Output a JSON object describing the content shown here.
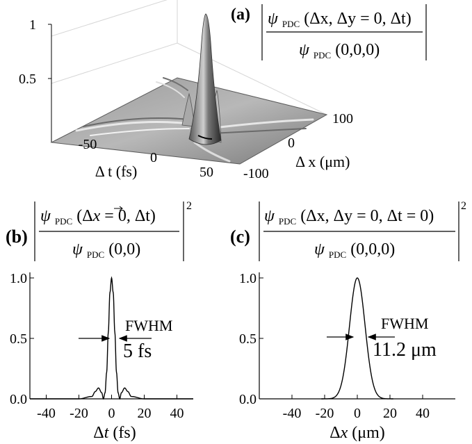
{
  "figure": {
    "a": {
      "tag": "(a)",
      "num_psi": "ψ",
      "num_sub": "PDC",
      "num_args": "(Δx, Δy = 0, Δt)",
      "den_psi": "ψ",
      "den_sub": "PDC",
      "den_args": "(0,0,0)",
      "z_ticks": [
        "0.5",
        "1"
      ],
      "t_ticks": [
        "-50",
        "0",
        "50"
      ],
      "x_ticks": [
        "100",
        "0",
        "-100"
      ],
      "t_axis_label": "Δ t (fs)",
      "x_axis_label": "Δ x (μm)"
    },
    "b": {
      "tag": "(b)",
      "num_psi": "ψ",
      "num_sub": "PDC",
      "num_args_1": "(Δ",
      "num_args_var": "x",
      "num_args_2": " = 0, Δt)",
      "den_psi": "ψ",
      "den_sub": "PDC",
      "den_args": "(0,0)",
      "power": "2",
      "annotation": "FWHM",
      "annotation_value": "5 fs",
      "xlabel_prefix": "Δ",
      "xlabel_var": "t",
      "xlabel_unit": " (fs)"
    },
    "c": {
      "tag": "(c)",
      "num_psi": "ψ",
      "num_sub": "PDC",
      "num_args": "(Δx, Δy = 0, Δt = 0)",
      "den_psi": "ψ",
      "den_sub": "PDC",
      "den_args": "(0,0,0)",
      "power": "2",
      "annotation": "FWHM",
      "annotation_value": "11.2 μm",
      "xlabel_prefix": "Δ",
      "xlabel_var": "x",
      "xlabel_unit": " (μm)"
    }
  },
  "chart_data": [
    {
      "panel": "a",
      "type": "surface",
      "x_ticks": [
        -100,
        0,
        100
      ],
      "t_ticks": [
        -50,
        0,
        50
      ],
      "z_ticks": [
        0.5,
        1
      ],
      "zlim": [
        0,
        1
      ],
      "peak": {
        "dx": 0,
        "dt": 0,
        "value": 1.0
      }
    },
    {
      "panel": "b",
      "type": "line",
      "xlim": [
        -50,
        50
      ],
      "ylim": [
        0,
        1
      ],
      "x_ticks": [
        -40,
        -20,
        0,
        20,
        40
      ],
      "y_ticks": [
        0.0,
        0.5,
        1.0
      ],
      "y_tick_labels": [
        "0.0",
        "0.5",
        "1.0"
      ],
      "fwhm": 5,
      "x": [
        -50,
        -20,
        -12,
        -10,
        -8,
        -6,
        -5,
        -4,
        -3,
        -2,
        -1,
        0,
        1,
        2,
        3,
        4,
        5,
        6,
        8,
        10,
        12,
        20,
        50
      ],
      "y": [
        0,
        0,
        0.02,
        0.06,
        0.09,
        0.05,
        0.0,
        0.05,
        0.22,
        0.55,
        0.88,
        1.0,
        0.88,
        0.55,
        0.22,
        0.05,
        0.0,
        0.05,
        0.09,
        0.06,
        0.02,
        0,
        0
      ]
    },
    {
      "panel": "c",
      "type": "line",
      "xlim": [
        -60,
        60
      ],
      "ylim": [
        0,
        1
      ],
      "x_ticks": [
        -40,
        -20,
        0,
        20,
        40
      ],
      "y_ticks": [
        0.0,
        0.5,
        1.0
      ],
      "y_tick_labels": [
        "0.0",
        "0.5",
        "1.0"
      ],
      "fwhm": 11.2,
      "gaussian_center": 0,
      "x_range": [
        -22,
        22
      ]
    }
  ]
}
